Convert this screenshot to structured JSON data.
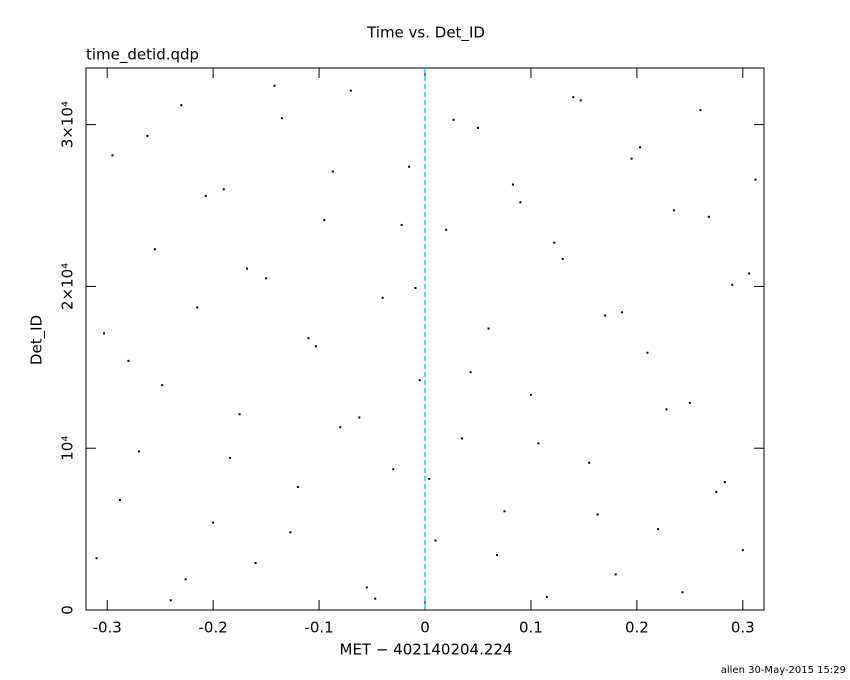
{
  "chart_data": {
    "type": "scatter",
    "title": "Time vs. Det_ID",
    "subtitle": "time_detid.qdp",
    "x_label": "MET − 402140204.224",
    "y_label": "Det_ID",
    "footer": "allen 30-May-2015 15:29",
    "xlim": [
      -0.32,
      0.32
    ],
    "ylim": [
      0,
      33500
    ],
    "xticks": [
      -0.3,
      -0.2,
      -0.1,
      0,
      0.1,
      0.2,
      0.3
    ],
    "yticks": [
      0,
      {
        "value": 10000,
        "label": "10⁴"
      },
      {
        "value": 20000,
        "label": "2×10⁴"
      },
      {
        "value": 30000,
        "label": "3×10⁴"
      }
    ],
    "vline_x": 0,
    "vline_color": "#00bcd4",
    "color": "#000000",
    "x": [
      -0.31,
      -0.295,
      -0.28,
      -0.27,
      -0.255,
      -0.24,
      -0.23,
      -0.215,
      -0.2,
      -0.19,
      -0.175,
      -0.16,
      -0.15,
      -0.135,
      -0.12,
      -0.11,
      -0.095,
      -0.08,
      -0.07,
      -0.055,
      -0.04,
      -0.03,
      -0.015,
      -0.005,
      0.01,
      0.02,
      0.035,
      0.05,
      0.06,
      0.075,
      0.09,
      0.1,
      0.115,
      0.13,
      0.14,
      0.155,
      0.17,
      0.18,
      0.195,
      0.21,
      0.22,
      0.235,
      0.25,
      0.26,
      0.275,
      0.29,
      0.3,
      0.312,
      -0.303,
      -0.288,
      -0.262,
      -0.248,
      -0.226,
      -0.207,
      -0.184,
      -0.168,
      -0.142,
      -0.127,
      -0.103,
      -0.087,
      -0.062,
      -0.047,
      -0.022,
      -0.009,
      0.004,
      0.027,
      0.043,
      0.068,
      0.083,
      0.107,
      0.122,
      0.147,
      0.163,
      0.186,
      0.203,
      0.228,
      0.243,
      0.268,
      0.283,
      0.306
    ],
    "y": [
      3200,
      28100,
      15400,
      9800,
      22300,
      600,
      31200,
      18700,
      5400,
      26000,
      12100,
      2900,
      20500,
      30400,
      7600,
      16800,
      24100,
      11300,
      32100,
      1400,
      19300,
      8700,
      27400,
      14200,
      4300,
      23500,
      10600,
      29800,
      17400,
      6100,
      25200,
      13300,
      800,
      21700,
      31700,
      9100,
      18200,
      2200,
      27900,
      15900,
      5000,
      24700,
      12800,
      30900,
      7300,
      20100,
      3700,
      26600,
      17100,
      6800,
      29300,
      13900,
      1900,
      25600,
      9400,
      21100,
      32400,
      4800,
      16300,
      27100,
      11900,
      700,
      23800,
      19900,
      8100,
      30300,
      14700,
      3400,
      26300,
      10300,
      22700,
      31500,
      5900,
      18400,
      28600,
      12400,
      1100,
      24300,
      7900,
      20800
    ]
  }
}
